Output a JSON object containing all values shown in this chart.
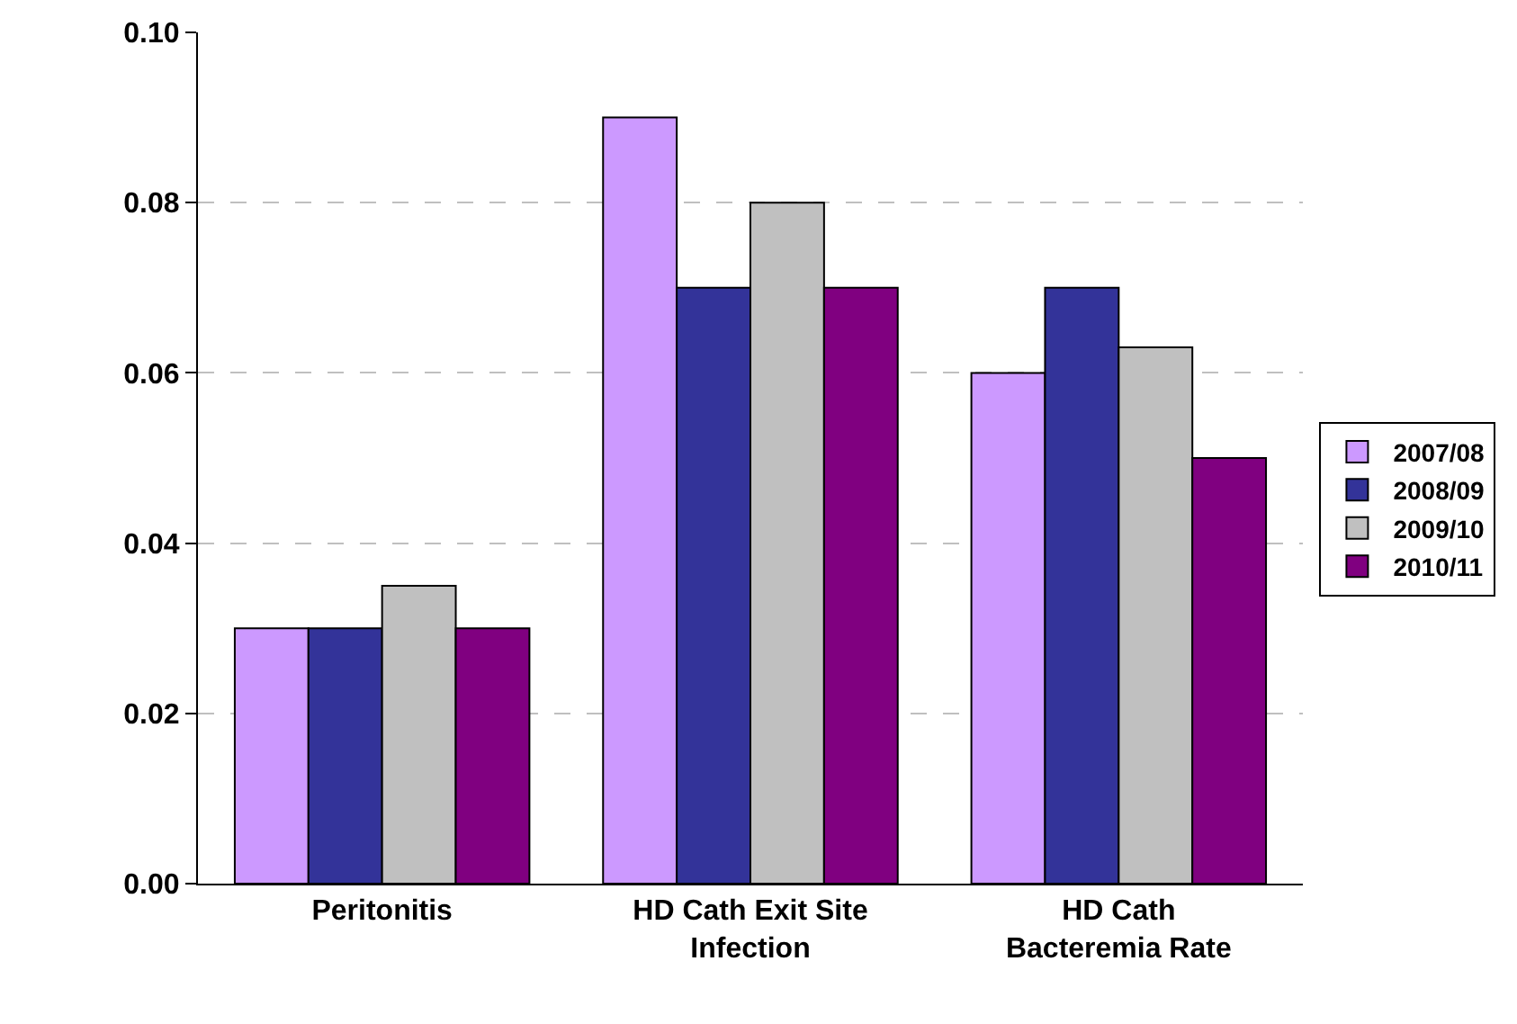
{
  "chart_data": {
    "type": "bar",
    "categories": [
      "Peritonitis",
      "HD Cath Exit Site Infection",
      "HD Cath Bacteremia Rate"
    ],
    "series": [
      {
        "name": "2007/08",
        "color": "#cc99ff",
        "values": [
          0.03,
          0.09,
          0.06
        ]
      },
      {
        "name": "2008/09",
        "color": "#333399",
        "values": [
          0.03,
          0.07,
          0.07
        ]
      },
      {
        "name": "2009/10",
        "color": "#c0c0c0",
        "values": [
          0.035,
          0.08,
          0.063
        ]
      },
      {
        "name": "2010/11",
        "color": "#800080",
        "values": [
          0.03,
          0.07,
          0.05
        ]
      }
    ],
    "ylim": [
      0,
      0.1
    ],
    "yticks": [
      {
        "value": 0,
        "label": "0.00"
      },
      {
        "value": 0.02,
        "label": "0.02"
      },
      {
        "value": 0.04,
        "label": "0.04"
      },
      {
        "value": 0.06,
        "label": "0.06"
      },
      {
        "value": 0.08,
        "label": "0.08"
      },
      {
        "value": 0.1,
        "label": "0.10"
      }
    ],
    "grid": "y",
    "legend": "right"
  }
}
